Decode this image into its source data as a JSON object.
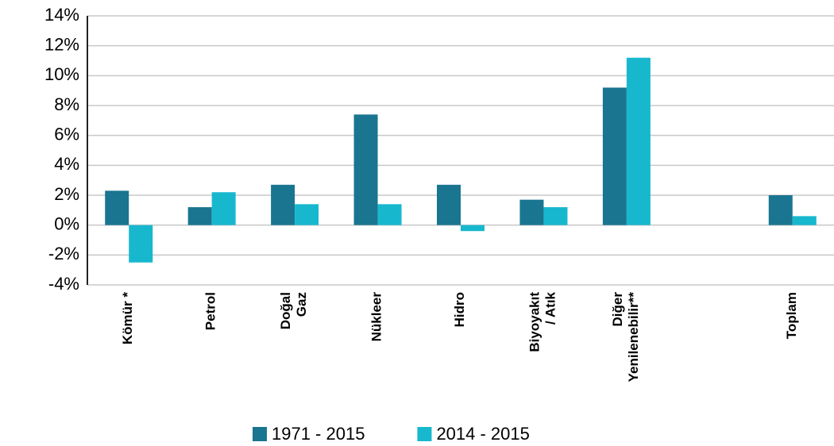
{
  "chart_data": {
    "type": "bar",
    "categories": [
      "Kömür *",
      "Petrol",
      "Doğal\nGaz",
      "Nükleer",
      "Hidro",
      "Biyoyakıt\n/ Atık",
      "Diğer\nYenilenebilir**",
      null,
      "Toplam"
    ],
    "series": [
      {
        "name": "1971 - 2015",
        "color": "#1a7590",
        "values": [
          2.3,
          1.2,
          2.7,
          7.4,
          2.7,
          1.7,
          9.2,
          null,
          2.0
        ]
      },
      {
        "name": "2014 - 2015",
        "color": "#17b8ce",
        "values": [
          -2.5,
          2.2,
          1.4,
          1.4,
          -0.4,
          1.2,
          11.2,
          null,
          0.6
        ]
      }
    ],
    "ylim": [
      -4,
      14
    ],
    "yticks": [
      {
        "value": -4,
        "label": "-4%"
      },
      {
        "value": -2,
        "label": "-2%"
      },
      {
        "value": 0,
        "label": "0%"
      },
      {
        "value": 2,
        "label": "2%"
      },
      {
        "value": 4,
        "label": "4%"
      },
      {
        "value": 6,
        "label": "6%"
      },
      {
        "value": 8,
        "label": "8%"
      },
      {
        "value": 10,
        "label": "10%"
      },
      {
        "value": 12,
        "label": "12%"
      },
      {
        "value": 14,
        "label": "14%"
      }
    ],
    "grid": true
  }
}
